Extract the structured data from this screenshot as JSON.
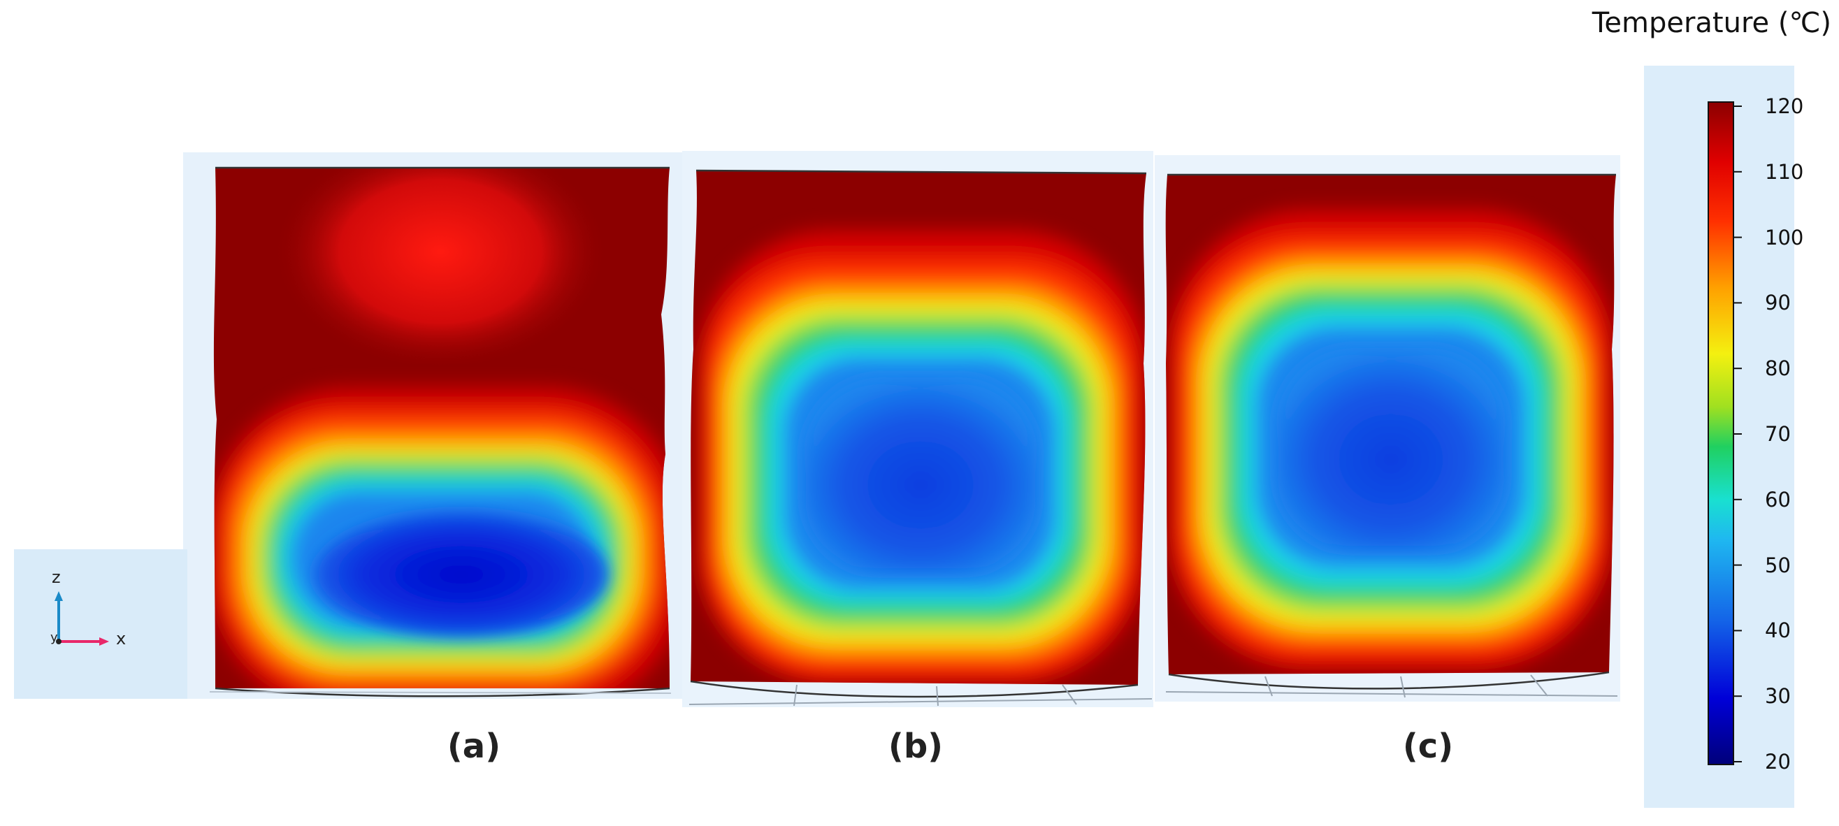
{
  "legend": {
    "title": "Temperature (℃)",
    "ticks": [
      "120",
      "110",
      "100",
      "90",
      "80",
      "70",
      "60",
      "50",
      "40",
      "30",
      "20"
    ],
    "range": [
      20,
      120
    ],
    "colormap": [
      "#00007a",
      "#0000d8",
      "#1466e8",
      "#1fb8f0",
      "#19e0d0",
      "#20d060",
      "#a0e020",
      "#f4f010",
      "#ffa000",
      "#ff3000",
      "#e00000",
      "#8c0000"
    ]
  },
  "axes": {
    "z_label": "z",
    "x_label": "x",
    "y_label": "y"
  },
  "panels": [
    {
      "label": "(a)",
      "cold_region": "lower-ellipse"
    },
    {
      "label": "(b)",
      "cold_region": "center-square"
    },
    {
      "label": "(c)",
      "cold_region": "center-square"
    }
  ],
  "colors": {
    "hot_outer": "#8c0000",
    "hot": "#e00000",
    "orange": "#ff8000",
    "yellow": "#f8e820",
    "green": "#20d060",
    "cyan": "#19d8f0",
    "blue": "#1266e6",
    "deep_blue": "#0010d8",
    "x_axis": "#e8286a",
    "z_axis": "#1a8ac8"
  }
}
